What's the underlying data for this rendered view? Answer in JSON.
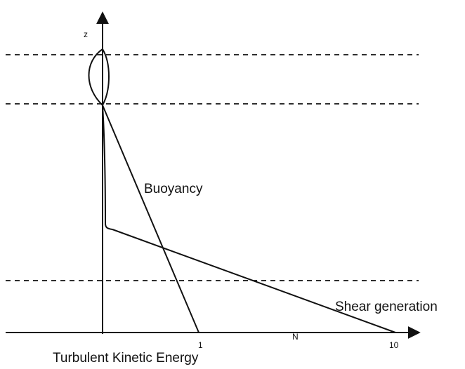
{
  "diagram": {
    "y_axis_label": "z",
    "x_axis_label": "Turbulent Kinetic Energy",
    "tick_1": "1",
    "tick_10": "10",
    "n_label": "N",
    "curve_buoyancy": "Buoyancy",
    "curve_shear": "Shear generation"
  },
  "colors": {
    "ink": "#111111",
    "background": "#ffffff"
  }
}
